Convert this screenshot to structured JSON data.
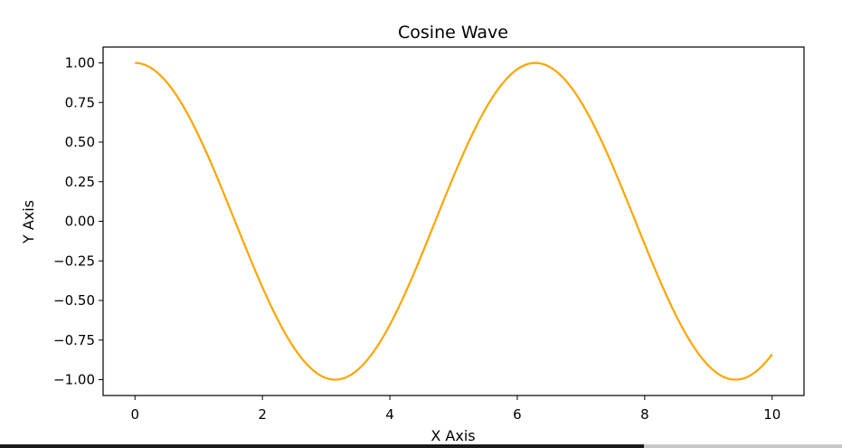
{
  "chart_data": {
    "type": "line",
    "title": "Cosine Wave",
    "xlabel": "X Axis",
    "ylabel": "Y Axis",
    "xlim": [
      -0.5,
      10.5
    ],
    "ylim": [
      -1.1,
      1.1
    ],
    "x_ticks": [
      0,
      2,
      4,
      6,
      8,
      10
    ],
    "x_tick_labels": [
      "0",
      "2",
      "4",
      "6",
      "8",
      "10"
    ],
    "y_ticks": [
      1.0,
      0.75,
      0.5,
      0.25,
      0.0,
      -0.25,
      -0.5,
      -0.75,
      -1.0
    ],
    "y_tick_labels": [
      "1.00",
      "0.75",
      "0.50",
      "0.25",
      "0.00",
      "−0.25",
      "−0.50",
      "−0.75",
      "−1.00"
    ],
    "grid": false,
    "series": [
      {
        "function": "cos",
        "x_start": 0,
        "x_end": 10,
        "samples": 200,
        "color": "#FFA500"
      }
    ]
  }
}
